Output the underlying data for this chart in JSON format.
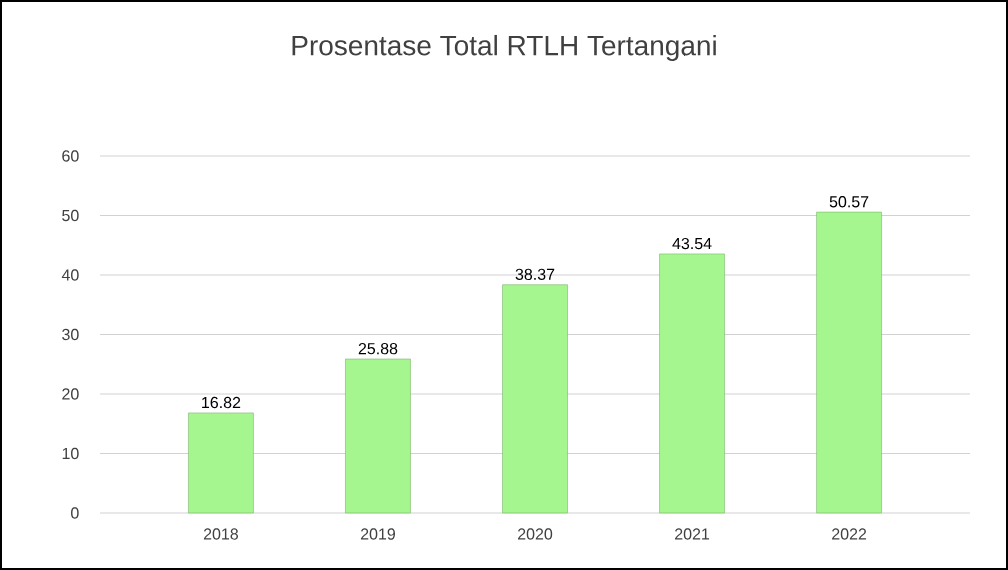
{
  "chart_data": {
    "type": "bar",
    "title": "Prosentase Total RTLH Tertangani",
    "categories": [
      "2018",
      "2019",
      "2020",
      "2021",
      "2022"
    ],
    "values": [
      16.82,
      25.88,
      38.37,
      43.54,
      50.57
    ],
    "color": "#a6f68f",
    "ylim": [
      0,
      60
    ],
    "yticks": [
      0,
      10,
      20,
      30,
      40,
      50,
      60
    ],
    "grid": "y",
    "data_labels": true
  }
}
